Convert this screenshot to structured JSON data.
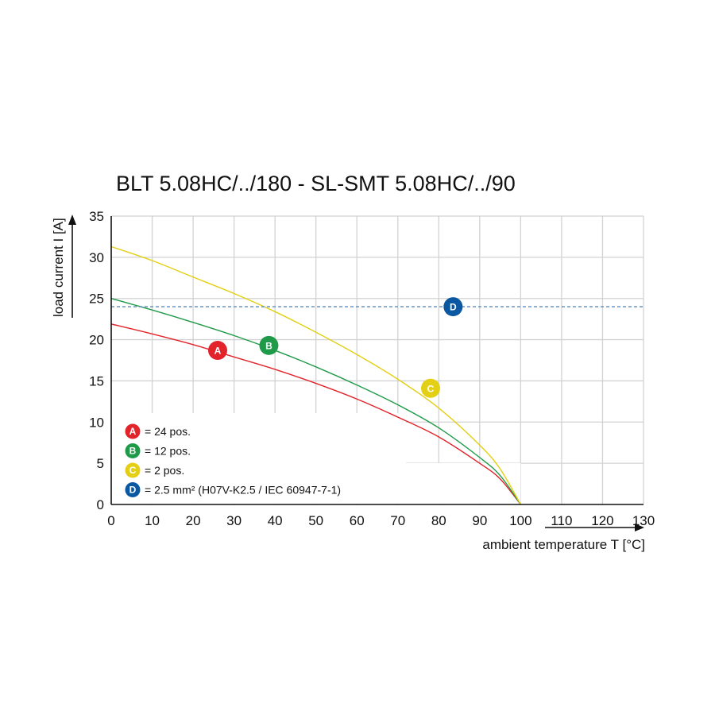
{
  "chart_data": {
    "type": "line",
    "title": "BLT 5.08HC/../180 - SL-SMT 5.08HC/../90",
    "xlabel": "ambient temperature T [°C]",
    "ylabel": "load current I [A]",
    "xlim": [
      0,
      130
    ],
    "ylim": [
      0,
      35
    ],
    "xticks": [
      "0",
      "10",
      "20",
      "30",
      "40",
      "50",
      "60",
      "70",
      "80",
      "90",
      "100",
      "110",
      "120",
      "130"
    ],
    "yticks": [
      "0",
      "5",
      "10",
      "15",
      "20",
      "25",
      "30",
      "35"
    ],
    "grid": true,
    "legend_position": "bottom-left",
    "series": [
      {
        "id": "A",
        "color": "#e2232a",
        "x": [
          0,
          10,
          20,
          30,
          40,
          50,
          60,
          70,
          80,
          90,
          95,
          100
        ],
        "y": [
          21.9,
          20.7,
          19.4,
          17.9,
          16.4,
          14.7,
          12.8,
          10.6,
          8.2,
          5.0,
          3.1,
          0
        ]
      },
      {
        "id": "B",
        "color": "#1f9a48",
        "x": [
          0,
          10,
          20,
          30,
          40,
          50,
          60,
          70,
          80,
          90,
          95,
          100
        ],
        "y": [
          25.0,
          23.6,
          22.1,
          20.5,
          18.7,
          16.7,
          14.5,
          12.1,
          9.3,
          5.7,
          3.5,
          0
        ]
      },
      {
        "id": "C",
        "color": "#e3cf13",
        "x": [
          0,
          10,
          20,
          30,
          40,
          50,
          60,
          70,
          80,
          90,
          95,
          100
        ],
        "y": [
          31.3,
          29.6,
          27.6,
          25.6,
          23.4,
          20.9,
          18.2,
          15.2,
          11.7,
          7.2,
          4.3,
          0
        ]
      },
      {
        "id": "D",
        "color": "#5a88bf",
        "dashed": true,
        "x": [
          0,
          130
        ],
        "y": [
          24,
          24
        ]
      }
    ],
    "badges": [
      {
        "label": "A",
        "x": 26,
        "y": 18.7,
        "color": "#e2232a"
      },
      {
        "label": "B",
        "x": 38.5,
        "y": 19.3,
        "color": "#1f9a48"
      },
      {
        "label": "C",
        "x": 78,
        "y": 14.1,
        "color": "#e3cf13"
      },
      {
        "label": "D",
        "x": 83.5,
        "y": 24.0,
        "color": "#0a58a2"
      }
    ],
    "legend": [
      {
        "label": "A",
        "text": "= 24 pos.",
        "color": "#e2232a"
      },
      {
        "label": "B",
        "text": "= 12 pos.",
        "color": "#1f9a48"
      },
      {
        "label": "C",
        "text": "= 2 pos.",
        "color": "#e3cf13"
      },
      {
        "label": "D",
        "text": "= 2.5 mm² (H07V-K2.5 / IEC 60947-7-1)",
        "color": "#0a58a2"
      }
    ]
  }
}
